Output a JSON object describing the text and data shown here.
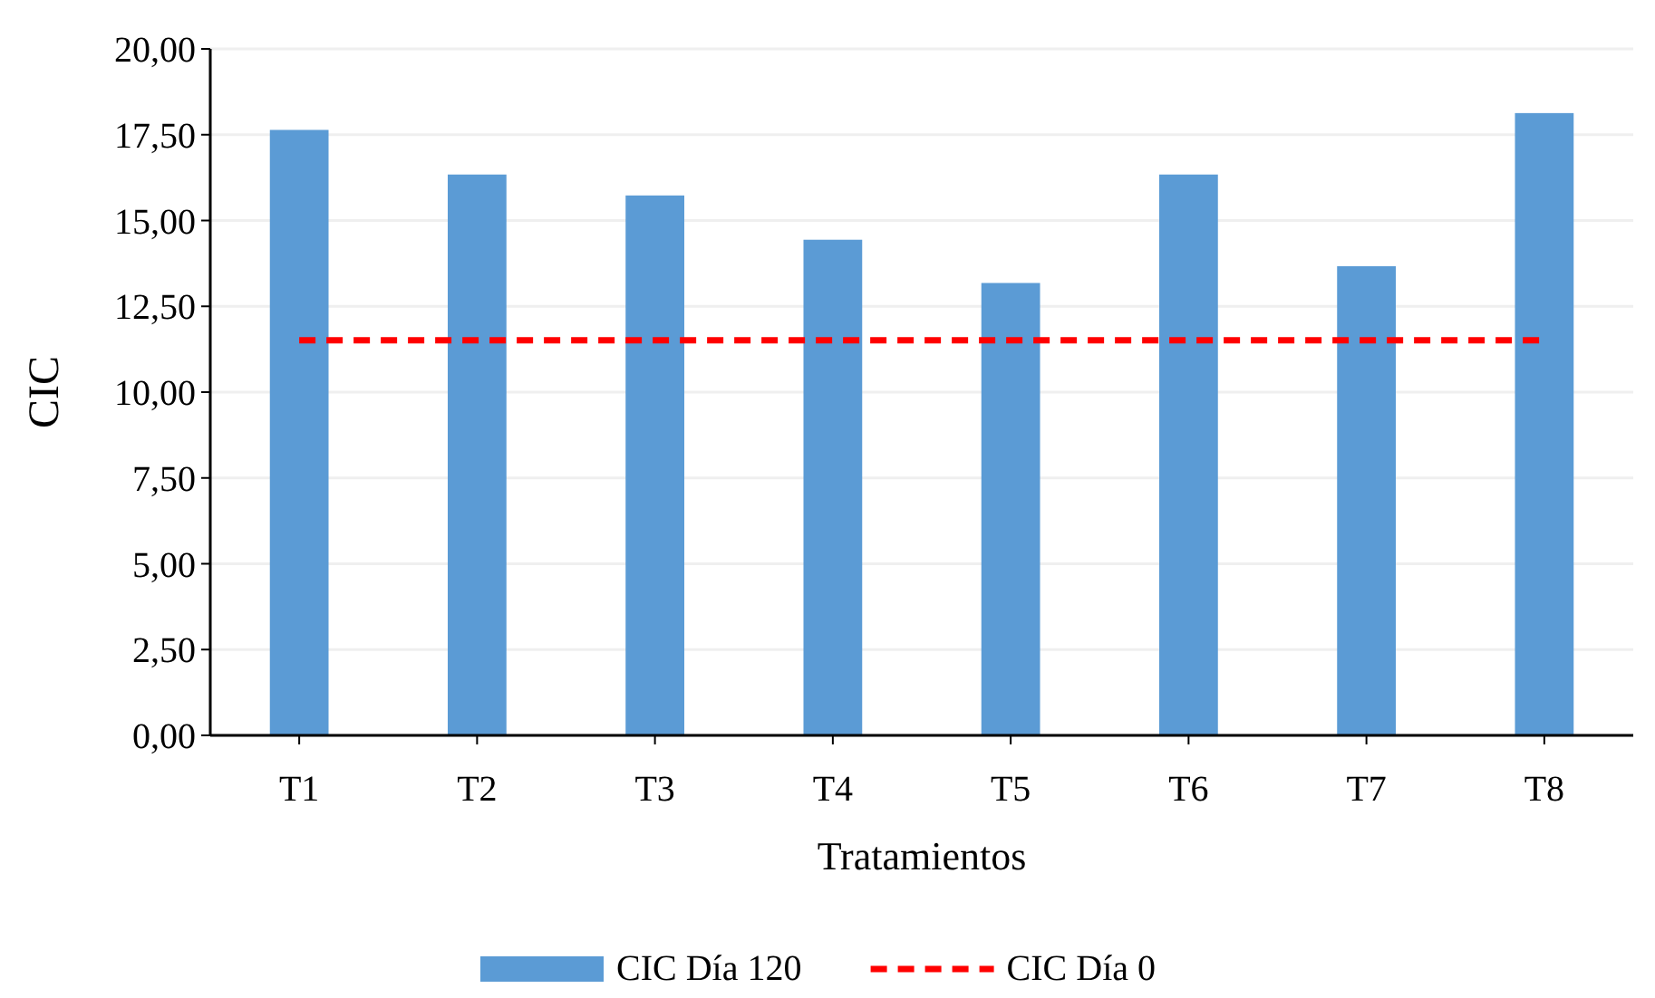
{
  "chart_data": {
    "type": "bar",
    "xlabel": "Tratamientos",
    "ylabel": "CIC",
    "categories": [
      "T1",
      "T2",
      "T3",
      "T4",
      "T5",
      "T6",
      "T7",
      "T8"
    ],
    "series": [
      {
        "name": "CIC Día 120",
        "color": "#5b9bd5",
        "values": [
          17.64,
          16.34,
          15.73,
          14.44,
          13.18,
          16.34,
          13.67,
          18.13
        ]
      },
      {
        "name": "CIC Día 0",
        "type": "line",
        "color": "#ff0000",
        "line_style": "dashed",
        "marker": "none",
        "values": [
          11.51,
          11.51,
          11.51,
          11.51,
          11.51,
          11.51,
          11.51,
          11.51
        ]
      }
    ],
    "ylim": [
      0,
      20
    ],
    "yticks": [
      {
        "value": 0,
        "label": "0,00"
      },
      {
        "value": 2.5,
        "label": "2,50"
      },
      {
        "value": 5,
        "label": "5,00"
      },
      {
        "value": 7.5,
        "label": "7,50"
      },
      {
        "value": 10,
        "label": "10,00"
      },
      {
        "value": 12.5,
        "label": "12,50"
      },
      {
        "value": 15,
        "label": "15,00"
      },
      {
        "value": 17.5,
        "label": "17,50"
      },
      {
        "value": 20,
        "label": "20,00"
      }
    ],
    "grid": "y",
    "legend": "bottom"
  }
}
